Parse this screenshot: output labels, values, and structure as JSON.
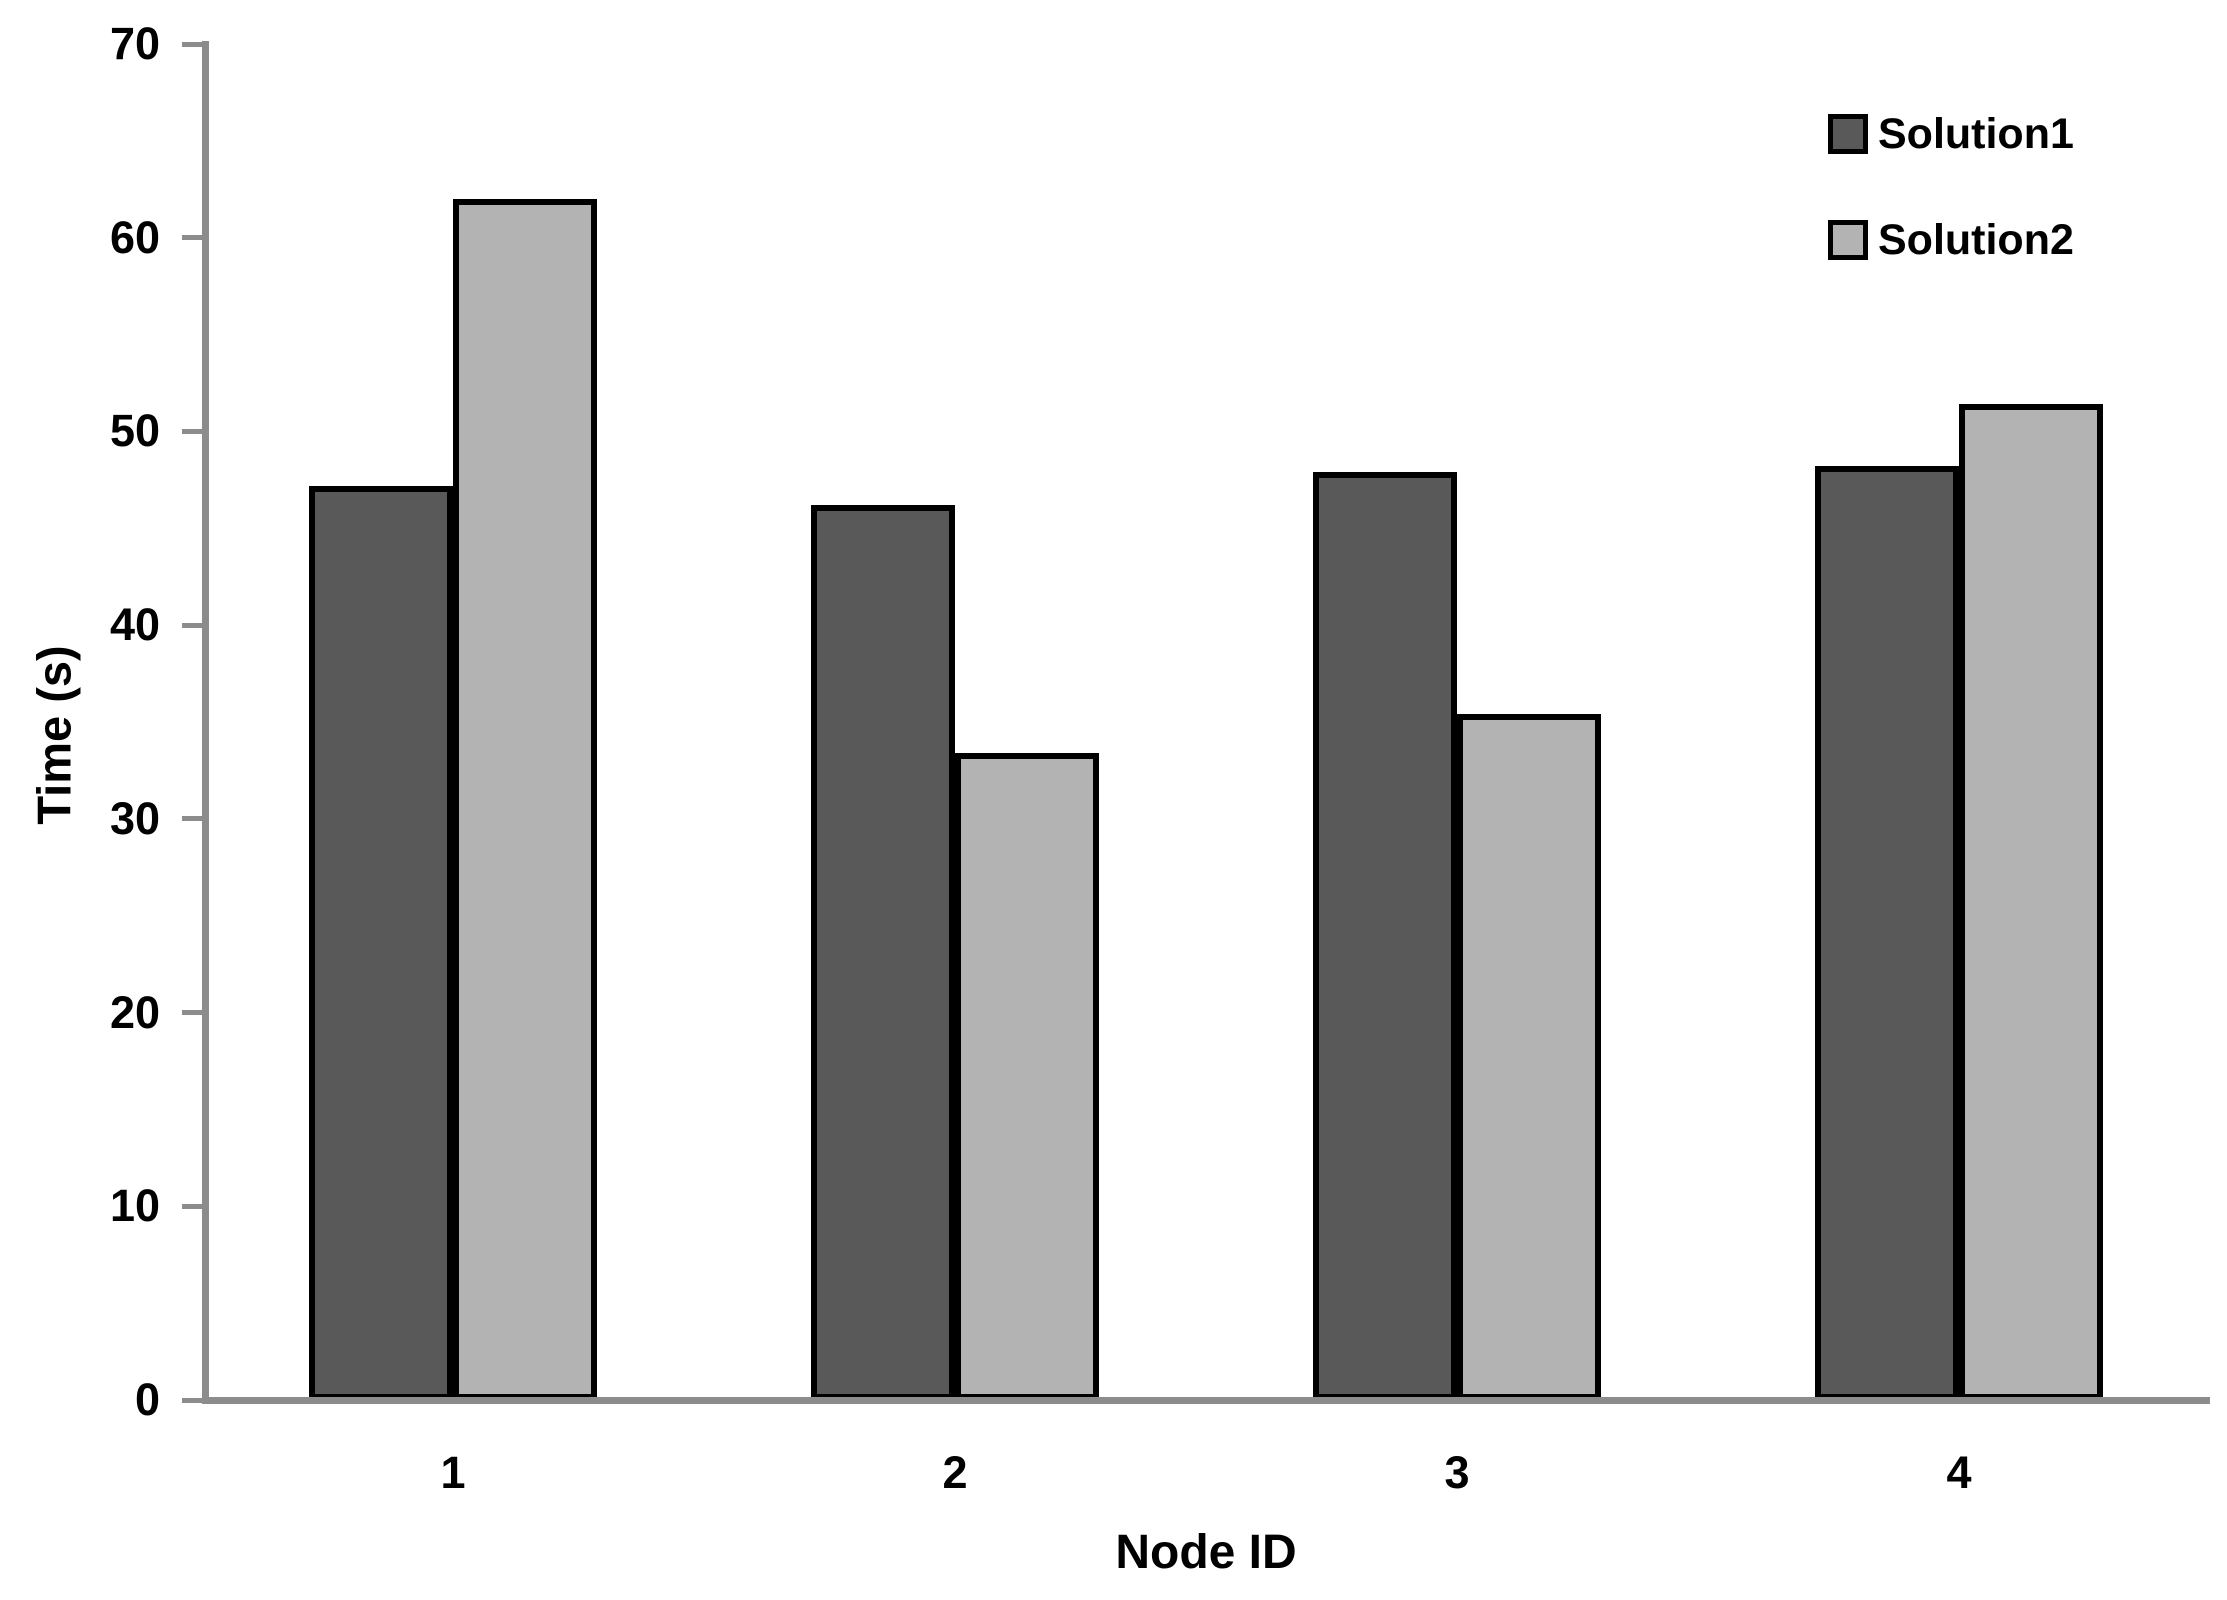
{
  "chart_data": {
    "type": "bar",
    "xlabel": "Node ID",
    "ylabel": "Time (s)",
    "categories": [
      "1",
      "2",
      "3",
      "4"
    ],
    "series": [
      {
        "name": "Solution1",
        "color": "#595959",
        "values": [
          47.2,
          46.2,
          47.9,
          48.2
        ]
      },
      {
        "name": "Solution2",
        "color": "#b3b3b3",
        "values": [
          62.0,
          33.4,
          35.4,
          51.4
        ]
      }
    ],
    "ylim": [
      0,
      70
    ],
    "ytick_step": 10,
    "yticks": [
      0,
      10,
      20,
      30,
      40,
      50,
      60,
      70
    ],
    "grid": false,
    "legend_position": "top-right",
    "bar_border_color": "#000000",
    "axis_color": "#8c8c8c",
    "text_color": "#000000",
    "background": "#ffffff"
  }
}
